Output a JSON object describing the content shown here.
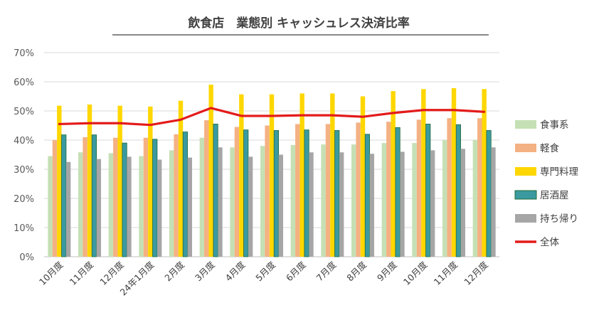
{
  "chart_data": {
    "type": "bar",
    "title": "飲食店　業態別 キャッシュレス決済比率",
    "categories": [
      "10月度",
      "11月度",
      "12月度",
      "24年1月度",
      "2月度",
      "3月度",
      "4月度",
      "5月度",
      "6月度",
      "7月度",
      "8月度",
      "9月度",
      "10月度",
      "11月度",
      "12月度"
    ],
    "y_tick_labels": [
      "0%",
      "10%",
      "20%",
      "30%",
      "40%",
      "50%",
      "60%",
      "70%"
    ],
    "ylim": [
      0,
      70
    ],
    "grid": true,
    "legend_position": "right",
    "series": [
      {
        "name": "食事系",
        "kind": "bar",
        "color": "#c5e0b4",
        "values": [
          34.5,
          35.8,
          35.5,
          34.5,
          36.5,
          40.8,
          37.5,
          38.0,
          38.3,
          38.5,
          38.5,
          39.0,
          39.0,
          40.0,
          40.0
        ]
      },
      {
        "name": "軽食",
        "kind": "bar",
        "color": "#f4b183",
        "values": [
          40.0,
          41.0,
          40.8,
          40.8,
          42.0,
          46.8,
          44.5,
          45.0,
          45.5,
          45.5,
          46.0,
          46.3,
          47.0,
          47.5,
          47.5
        ]
      },
      {
        "name": "専門料理",
        "kind": "bar",
        "color": "#ffd700",
        "values": [
          51.8,
          52.2,
          51.8,
          51.5,
          53.5,
          59.0,
          55.7,
          55.7,
          56.0,
          56.0,
          55.0,
          56.8,
          57.5,
          57.8,
          57.5
        ]
      },
      {
        "name": "居酒屋",
        "kind": "bar",
        "color": "#3a9aa0",
        "values": [
          41.8,
          41.8,
          39.0,
          40.3,
          42.8,
          45.5,
          43.5,
          43.3,
          43.5,
          43.3,
          42.0,
          44.3,
          45.5,
          45.3,
          43.3
        ]
      },
      {
        "name": "持ち帰り",
        "kind": "bar",
        "color": "#a6a6a6",
        "values": [
          32.5,
          33.5,
          34.3,
          33.3,
          34.0,
          37.5,
          34.3,
          35.0,
          35.8,
          35.8,
          35.3,
          36.0,
          36.5,
          37.0,
          37.5
        ]
      },
      {
        "name": "全体",
        "kind": "line",
        "color": "#e31b1b",
        "values": [
          45.5,
          45.8,
          45.8,
          45.2,
          47.0,
          51.0,
          48.3,
          48.3,
          48.5,
          48.5,
          48.0,
          49.3,
          50.3,
          50.3,
          49.7
        ]
      }
    ]
  }
}
